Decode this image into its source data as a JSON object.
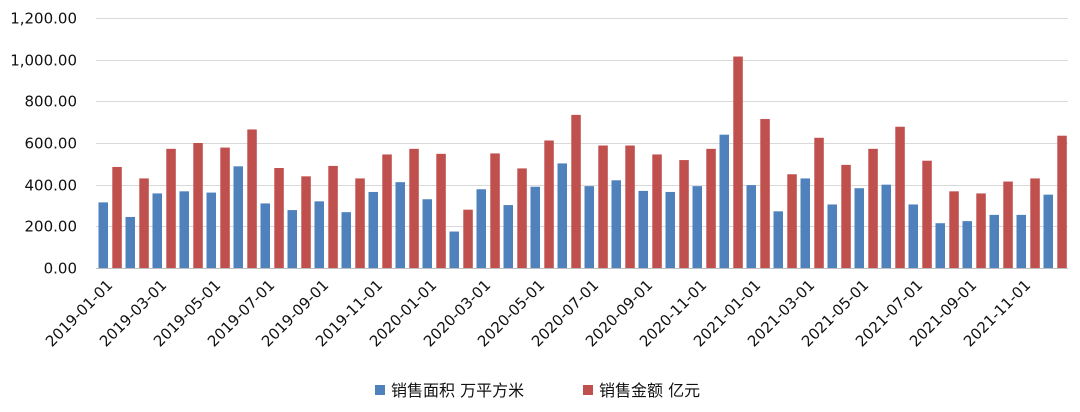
{
  "chart_data": {
    "type": "bar",
    "title": "",
    "xlabel": "",
    "ylabel": "",
    "ylim": [
      0,
      1200
    ],
    "y_ticks": [
      "0.00",
      "200.00",
      "400.00",
      "600.00",
      "800.00",
      "1,000.00",
      "1,200.00"
    ],
    "y_tick_values": [
      0,
      200,
      400,
      600,
      800,
      1000,
      1200
    ],
    "grid": true,
    "legend_position": "bottom",
    "categories": [
      "2019-01-01",
      "2019-02-01",
      "2019-03-01",
      "2019-04-01",
      "2019-05-01",
      "2019-06-01",
      "2019-07-01",
      "2019-08-01",
      "2019-09-01",
      "2019-10-01",
      "2019-11-01",
      "2019-12-01",
      "2020-01-01",
      "2020-02-01",
      "2020-03-01",
      "2020-04-01",
      "2020-05-01",
      "2020-06-01",
      "2020-07-01",
      "2020-08-01",
      "2020-09-01",
      "2020-10-01",
      "2020-11-01",
      "2020-12-01",
      "2021-01-01",
      "2021-02-01",
      "2021-03-01",
      "2021-04-01",
      "2021-05-01",
      "2021-06-01",
      "2021-07-01",
      "2021-08-01",
      "2021-09-01",
      "2021-10-01",
      "2021-11-01",
      "2021-12-01"
    ],
    "x_tick_labels": [
      "2019-01-01",
      "2019-03-01",
      "2019-05-01",
      "2019-07-01",
      "2019-09-01",
      "2019-11-01",
      "2020-01-01",
      "2020-03-01",
      "2020-05-01",
      "2020-07-01",
      "2020-09-01",
      "2020-11-01",
      "2021-01-01",
      "2021-03-01",
      "2021-05-01",
      "2021-07-01",
      "2021-09-01",
      "2021-11-01"
    ],
    "series": [
      {
        "name": "销售面积 万平方米",
        "color": "#4f81bd",
        "values": [
          315,
          245,
          358,
          368,
          362,
          488,
          310,
          278,
          320,
          268,
          365,
          412,
          330,
          175,
          378,
          302,
          390,
          502,
          393,
          421,
          370,
          365,
          393,
          640,
          398,
          272,
          430,
          305,
          383,
          400,
          305,
          215,
          225,
          255,
          255,
          352
        ]
      },
      {
        "name": "销售金额 亿元",
        "color": "#c0504d",
        "values": [
          485,
          430,
          572,
          600,
          578,
          665,
          480,
          440,
          490,
          430,
          545,
          572,
          548,
          280,
          550,
          478,
          612,
          735,
          588,
          588,
          545,
          518,
          572,
          1015,
          715,
          450,
          625,
          495,
          572,
          678,
          515,
          368,
          358,
          415,
          430,
          635
        ]
      }
    ]
  }
}
